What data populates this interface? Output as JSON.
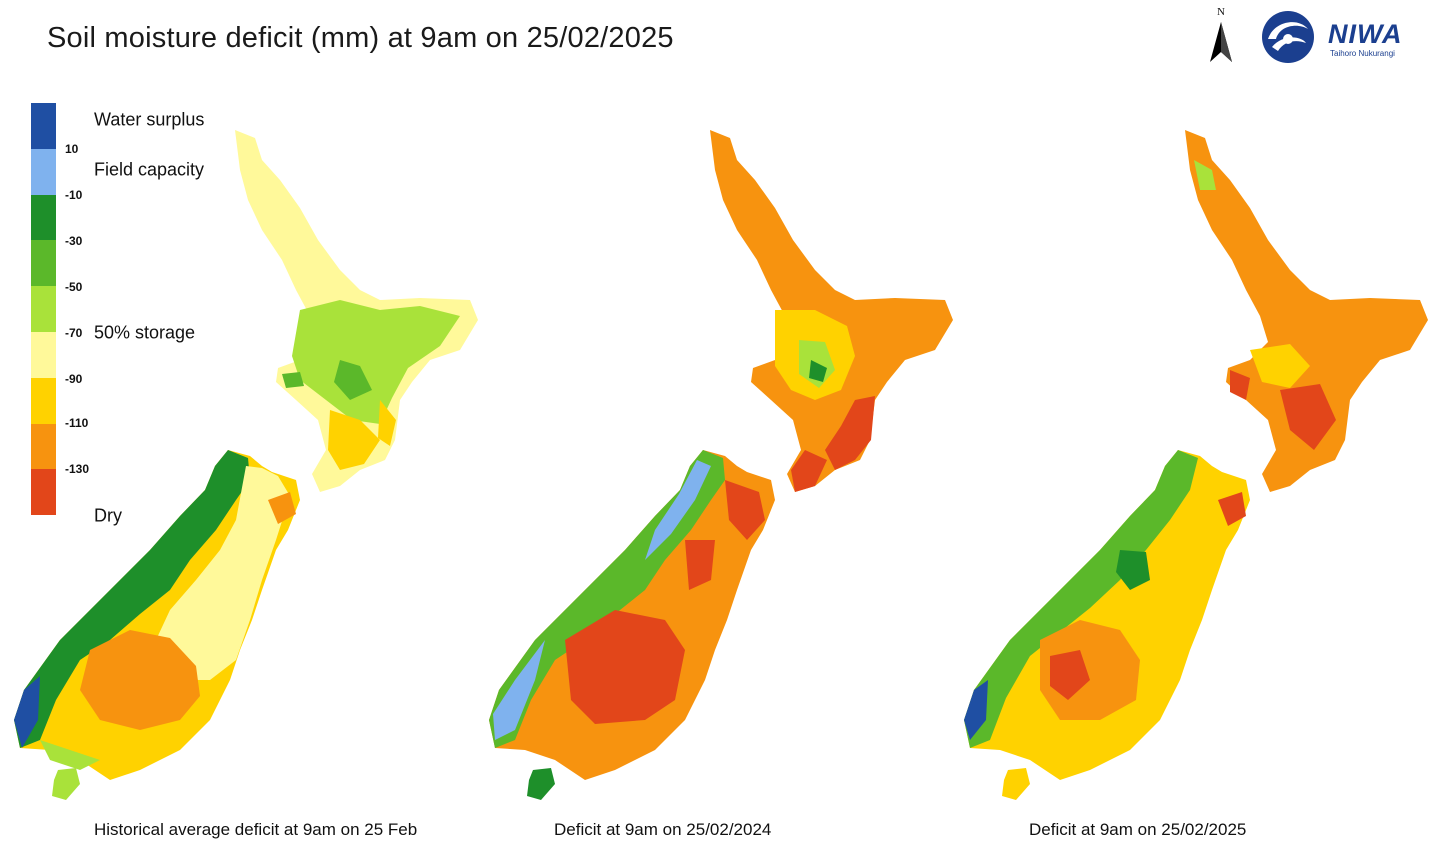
{
  "title": "Soil moisture deficit (mm) at  9am on 25/02/2025",
  "legend": {
    "colors": [
      "#1f4fa3",
      "#7fb2ee",
      "#1e8f2a",
      "#5bb82a",
      "#a9e23a",
      "#fff99a",
      "#ffd200",
      "#f7930f",
      "#e2461a"
    ],
    "ticks": [
      "10",
      "-10",
      "-30",
      "-50",
      "-70",
      "-90",
      "-110",
      "-130"
    ],
    "labels": {
      "water_surplus": "Water surplus",
      "field_capacity": "Field capacity",
      "storage": "50% storage",
      "dry": "Dry"
    }
  },
  "north_label": "N",
  "logo": {
    "name": "NIWA",
    "tagline": "Taihoro Nukurangi"
  },
  "maps": [
    {
      "caption": "Historical average deficit at  9am on 25 Feb",
      "dominant_class": "light green / yellow, orange inland South Island"
    },
    {
      "caption": "Deficit at  9am on 25/02/2024",
      "dominant_class": "orange / red with green on West Coast"
    },
    {
      "caption": "Deficit at  9am on 25/02/2025",
      "dominant_class": "orange / yellow with green on West Coast"
    }
  ]
}
